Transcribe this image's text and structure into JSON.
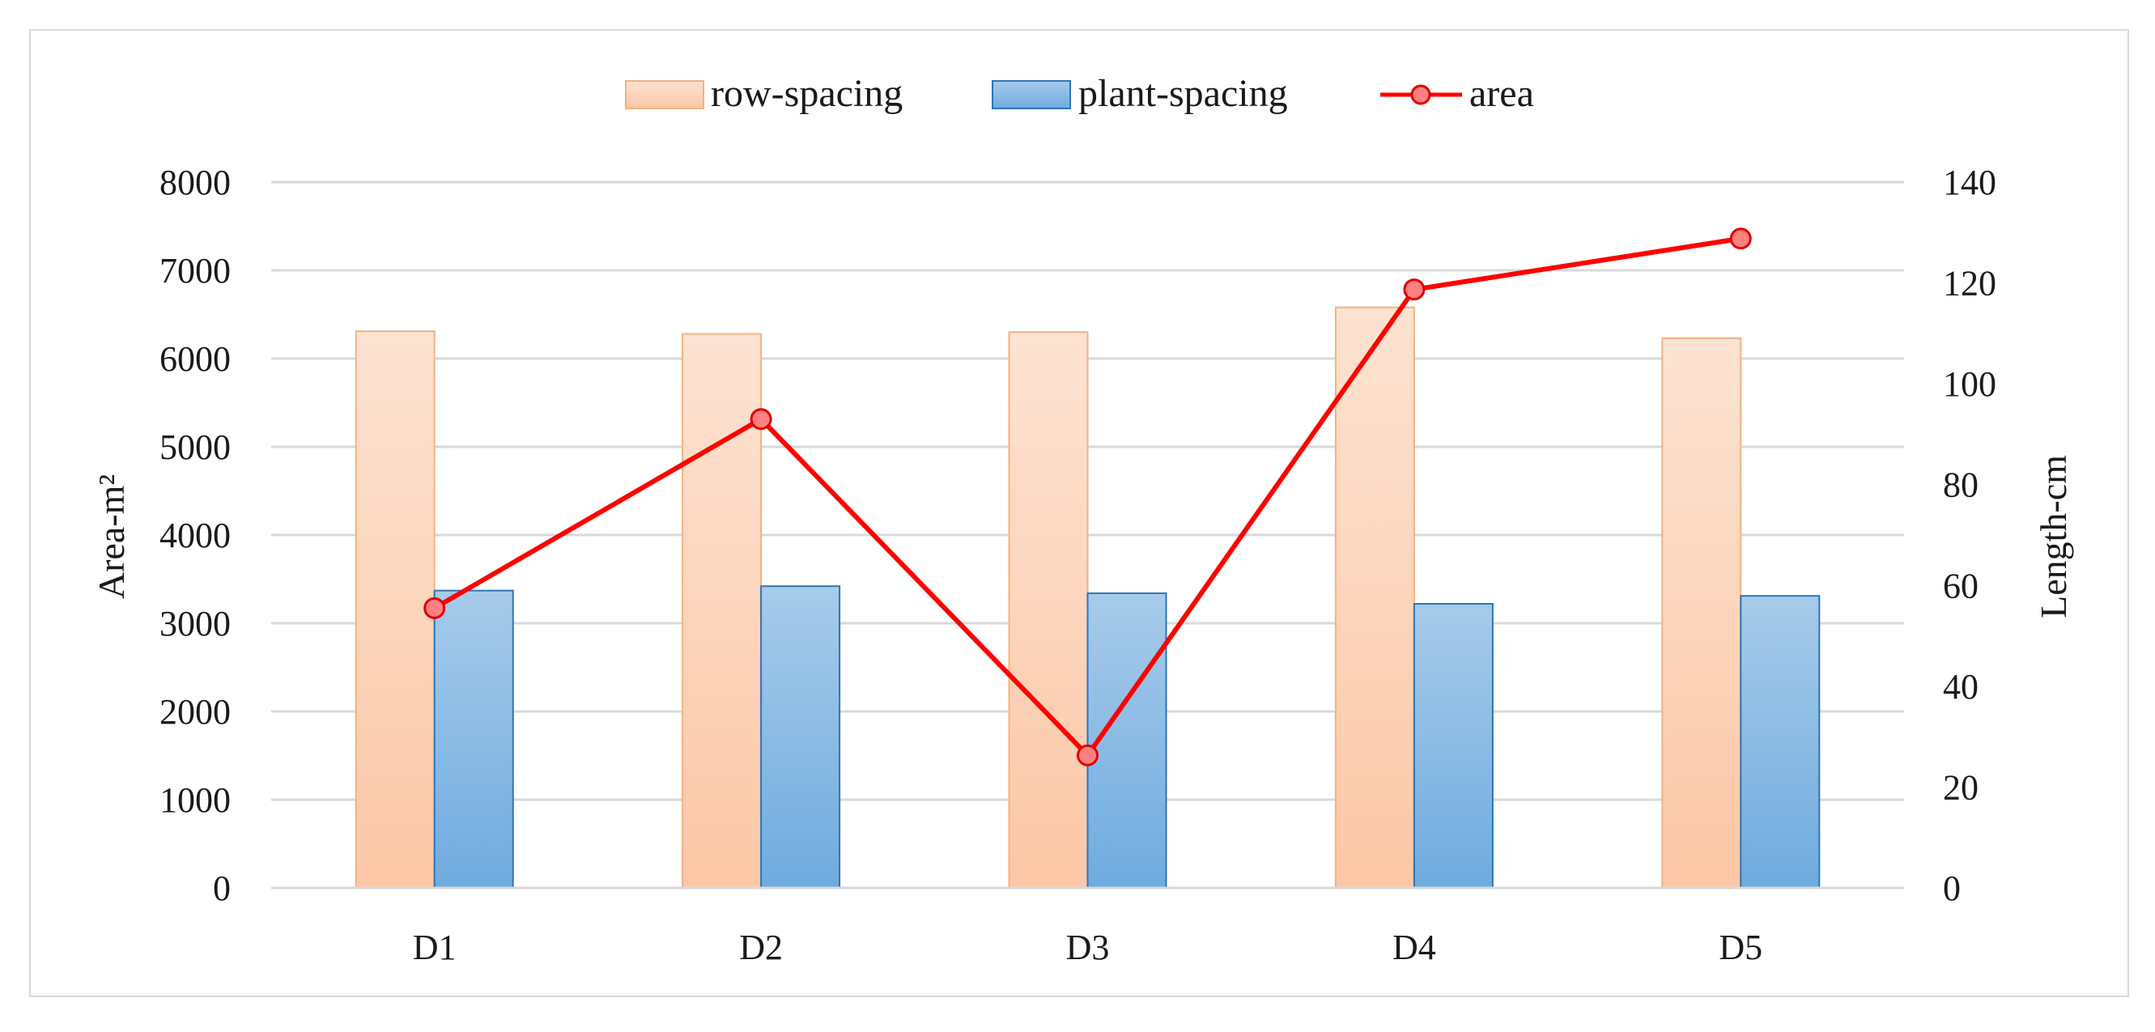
{
  "chart_data": {
    "type": "bar",
    "categories": [
      "D1",
      "D2",
      "D3",
      "D4",
      "D5"
    ],
    "series": [
      {
        "name": "plant-spacing",
        "kind": "bar",
        "axis": "left",
        "values": [
          3370,
          3420,
          3340,
          3220,
          3310
        ],
        "color": "#5b9bd5"
      },
      {
        "name": "area",
        "kind": "line",
        "axis": "right",
        "values": [
          55.5,
          93,
          26.3,
          118.7,
          128.8
        ],
        "color": "#ff0000"
      },
      {
        "name": "row-spacing",
        "kind": "bar",
        "axis": "left",
        "values": [
          6310,
          6280,
          6300,
          6580,
          6230
        ],
        "color": "#f8cbad"
      }
    ],
    "ylabel": "Area-m²",
    "y2label": "Length-cm",
    "ylim": [
      0,
      8000
    ],
    "y2lim": [
      0,
      140
    ],
    "yticks": [
      "0",
      "1000",
      "2000",
      "3000",
      "4000",
      "5000",
      "6000",
      "7000",
      "8000"
    ],
    "y2ticks": [
      "0",
      "20",
      "40",
      "60",
      "80",
      "100",
      "120",
      "140"
    ],
    "legend_position": "top",
    "legend": [
      "row-spacing",
      "plant-spacing",
      "area"
    ],
    "grid": true
  }
}
